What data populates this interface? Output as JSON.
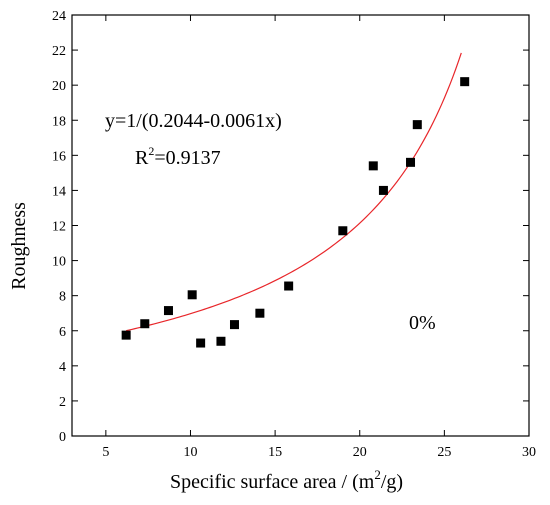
{
  "chart_data": {
    "type": "scatter",
    "xlabel_main": "Specific surface area / (m",
    "xlabel_sup": "2",
    "xlabel_tail": "/g)",
    "ylabel": "Roughness",
    "xlim": [
      3,
      30
    ],
    "ylim": [
      0,
      24
    ],
    "xticks": [
      5,
      10,
      15,
      20,
      25,
      30
    ],
    "yticks": [
      0,
      2,
      4,
      6,
      8,
      10,
      12,
      14,
      16,
      18,
      20,
      22,
      24
    ],
    "grid": false,
    "points": [
      {
        "x": 6.2,
        "y": 5.75
      },
      {
        "x": 7.3,
        "y": 6.4
      },
      {
        "x": 8.7,
        "y": 7.15
      },
      {
        "x": 10.1,
        "y": 8.05
      },
      {
        "x": 10.6,
        "y": 5.3
      },
      {
        "x": 11.8,
        "y": 5.4
      },
      {
        "x": 12.6,
        "y": 6.35
      },
      {
        "x": 14.1,
        "y": 7.0
      },
      {
        "x": 15.8,
        "y": 8.55
      },
      {
        "x": 19.0,
        "y": 11.7
      },
      {
        "x": 20.8,
        "y": 15.4
      },
      {
        "x": 21.4,
        "y": 14.0
      },
      {
        "x": 23.0,
        "y": 15.6
      },
      {
        "x": 23.4,
        "y": 17.75
      },
      {
        "x": 26.2,
        "y": 20.2
      }
    ],
    "fit": {
      "a": 0.2044,
      "b": 0.0061,
      "x_range": [
        6.2,
        26.0
      ],
      "color": "#e8262a"
    },
    "marker_color": "#000000",
    "annotations": {
      "equation": "y=1/(0.2044-0.0061x)",
      "r2_prefix": "R",
      "r2_sup": "2",
      "r2_value": "=0.9137",
      "label": "0%"
    }
  }
}
